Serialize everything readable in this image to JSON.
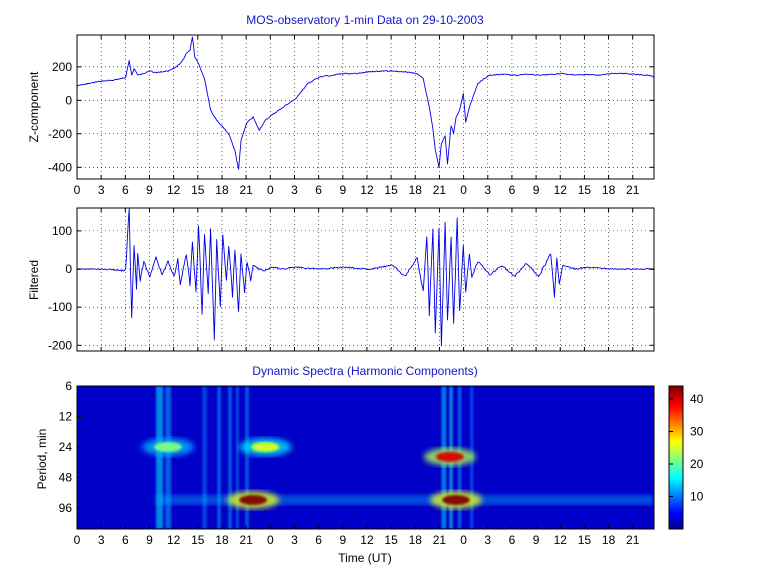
{
  "chart_data": [
    {
      "type": "line",
      "title": "MOS-observatory 1-min Data on 29-10-2003",
      "ylabel": "Z-component",
      "xlim": [
        0,
        47.5
      ],
      "ylim": [
        -470,
        390
      ],
      "yticks": [
        200,
        0,
        -200,
        -400
      ],
      "xtick_labels": [
        "0",
        "3",
        "6",
        "9",
        "12",
        "15",
        "18",
        "21",
        "0",
        "3",
        "6",
        "9",
        "12",
        "15",
        "18",
        "21",
        "0",
        "3",
        "6",
        "9",
        "12",
        "15",
        "18",
        "21"
      ],
      "grid": true,
      "series": [
        {
          "color": "#0000e6",
          "x": [
            0,
            1,
            2,
            3,
            4,
            4.3,
            4.5,
            4.7,
            5,
            5.5,
            6,
            6.5,
            7,
            7.5,
            8,
            8.5,
            8.8,
            9,
            9.3,
            9.5,
            9.7,
            10,
            10.5,
            11,
            11.5,
            12,
            12.5,
            13,
            13.3,
            13.5,
            14,
            14.5,
            15,
            15.5,
            16,
            17,
            18,
            19,
            20,
            21,
            22,
            23,
            24,
            25,
            26,
            27,
            28,
            28.5,
            29,
            29.3,
            29.5,
            29.8,
            30,
            30.3,
            30.5,
            30.8,
            31,
            31.2,
            31.5,
            31.8,
            32,
            32.3,
            32.5,
            33,
            33.5,
            34,
            35,
            36,
            37,
            38,
            39,
            40,
            41,
            42,
            43,
            44,
            45,
            46,
            47,
            47.5
          ],
          "y": [
            85,
            100,
            115,
            120,
            135,
            240,
            150,
            190,
            150,
            160,
            175,
            165,
            170,
            175,
            190,
            220,
            250,
            280,
            300,
            380,
            260,
            220,
            130,
            -60,
            -120,
            -160,
            -200,
            -300,
            -410,
            -240,
            -130,
            -100,
            -180,
            -120,
            -90,
            -40,
            10,
            100,
            140,
            150,
            160,
            160,
            170,
            175,
            175,
            170,
            160,
            130,
            -40,
            -170,
            -300,
            -400,
            -260,
            -210,
            -380,
            -150,
            -200,
            -100,
            -60,
            40,
            -130,
            -40,
            0,
            100,
            130,
            150,
            155,
            150,
            155,
            150,
            155,
            160,
            150,
            155,
            150,
            160,
            160,
            155,
            150,
            140
          ]
        }
      ]
    },
    {
      "type": "line",
      "ylabel": "Filtered",
      "xlim": [
        0,
        47.5
      ],
      "ylim": [
        -215,
        160
      ],
      "yticks": [
        100,
        0,
        -100,
        -200
      ],
      "xtick_labels": [
        "",
        "",
        "",
        "",
        "",
        "",
        "",
        "",
        "",
        "",
        "",
        "",
        "",
        "",
        "",
        "",
        "",
        "",
        "",
        "",
        "",
        "",
        "",
        ""
      ],
      "grid": true,
      "series": [
        {
          "color": "#0000e6",
          "x": [
            0,
            2,
            4,
            4.3,
            4.5,
            4.7,
            4.9,
            5,
            5.2,
            5.5,
            6,
            6.5,
            7,
            7.5,
            8,
            8.3,
            8.5,
            9,
            9.3,
            9.5,
            9.8,
            10,
            10.3,
            10.5,
            10.8,
            11,
            11.3,
            11.5,
            11.8,
            12,
            12.3,
            12.5,
            12.8,
            13,
            13.3,
            13.5,
            13.8,
            14,
            14.3,
            14.5,
            15,
            15.5,
            16,
            17,
            18,
            20,
            22,
            24,
            26,
            27,
            28,
            28.5,
            28.8,
            29,
            29.3,
            29.5,
            29.8,
            30,
            30.3,
            30.5,
            30.8,
            31,
            31.3,
            31.5,
            31.8,
            32,
            32.3,
            32.5,
            33,
            34,
            35,
            36,
            37,
            38,
            39,
            39.3,
            39.5,
            39.7,
            40,
            41,
            42,
            44,
            46,
            47.5
          ],
          "y": [
            0,
            0,
            -5,
            160,
            -130,
            60,
            -50,
            40,
            -30,
            20,
            -20,
            30,
            -15,
            20,
            -20,
            25,
            -40,
            40,
            -40,
            70,
            -60,
            120,
            -120,
            90,
            -60,
            100,
            -190,
            80,
            -100,
            90,
            -30,
            60,
            -70,
            50,
            -110,
            40,
            -60,
            20,
            -30,
            10,
            0,
            -5,
            5,
            0,
            5,
            0,
            5,
            0,
            10,
            -20,
            30,
            -60,
            90,
            -120,
            100,
            -170,
            110,
            -210,
            120,
            -140,
            90,
            -150,
            130,
            -110,
            60,
            -60,
            40,
            -20,
            20,
            -15,
            10,
            -20,
            15,
            -20,
            40,
            -70,
            30,
            -40,
            10,
            0,
            5,
            0,
            0,
            0
          ]
        }
      ]
    },
    {
      "type": "heatmap",
      "title": "Dynamic Spectra (Harmonic Components)",
      "xlabel": "Time (UT)",
      "ylabel": "Period, min",
      "ytick_labels": [
        "6",
        "12",
        "24",
        "48",
        "96"
      ],
      "xtick_labels": [
        "0",
        "3",
        "6",
        "9",
        "12",
        "15",
        "18",
        "21",
        "0",
        "3",
        "6",
        "9",
        "12",
        "15",
        "18",
        "21",
        "0",
        "3",
        "6",
        "9",
        "12",
        "15",
        "18",
        "21"
      ],
      "xlim": [
        0,
        47.5
      ],
      "clim": [
        0,
        44
      ],
      "colorbar_ticks": [
        40,
        30,
        20,
        10
      ],
      "colormap": "jet",
      "hotspots": [
        {
          "time": 7.5,
          "period_min": 24,
          "value": 22
        },
        {
          "time": 14.5,
          "period_min": 80,
          "value": 44
        },
        {
          "time": 15.5,
          "period_min": 24,
          "value": 26
        },
        {
          "time": 30.7,
          "period_min": 30,
          "value": 40
        },
        {
          "time": 31.2,
          "period_min": 80,
          "value": 44
        }
      ]
    }
  ]
}
